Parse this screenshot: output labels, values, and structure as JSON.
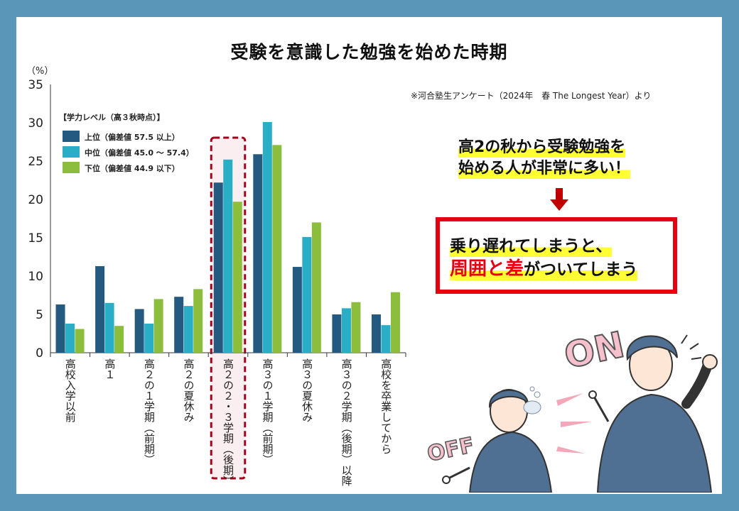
{
  "title": "受験を意識した勉強を始めた時期",
  "source_note": "※河合塾生アンケート（2024年　春 The Longest Year）より",
  "callout": {
    "line1": "高2の秋から受験勉強を",
    "line2": "始める人が非常に多い！"
  },
  "highlight": {
    "line1": "乗り遅れてしまうと、",
    "line2_emphasis": "周囲と差",
    "line2_rest": "がついてしまう"
  },
  "illustration": {
    "on_text": "ON",
    "off_text": "OFF"
  },
  "colors": {
    "upper": "#245a80",
    "middle": "#2aaec6",
    "lower": "#8cbd3c",
    "highlight_dash": "#a3001b",
    "highlight_fill": "#fbeef0",
    "emphasis_red": "#e60012",
    "marker_yellow": "#ffff33",
    "frame_blue": "#5a96b8"
  },
  "chart_data": {
    "type": "bar",
    "ylabel": "（%）",
    "ylim": [
      0,
      35
    ],
    "yticks": [
      0,
      5,
      10,
      15,
      20,
      25,
      30,
      35
    ],
    "grid": false,
    "legend_title": "【学力レベル（高３秋時点）】",
    "legend_position": "top-left",
    "categories": [
      "高校入学以前",
      "高１",
      "高２の１学期（前期）",
      "高２の夏休み",
      "高２の２・３学期（後期）",
      "高３の１学期（前期）",
      "高３の夏休み",
      "高３の２学期（後期）以降",
      "高校を卒業してから"
    ],
    "highlight_category_index": 4,
    "series": [
      {
        "name": "上位（偏差値 57.5 以上）",
        "values": [
          6.3,
          11.3,
          5.7,
          7.3,
          22.2,
          25.9,
          11.2,
          5.0,
          5.0
        ]
      },
      {
        "name": "中位（偏差値 45.0 ～ 57.4）",
        "values": [
          3.8,
          6.5,
          3.8,
          6.1,
          25.2,
          30.1,
          15.1,
          5.8,
          3.6
        ]
      },
      {
        "name": "下位（偏差値 44.9 以下）",
        "values": [
          3.1,
          3.5,
          7.0,
          8.3,
          19.7,
          27.1,
          17.0,
          6.6,
          7.9
        ]
      }
    ]
  }
}
